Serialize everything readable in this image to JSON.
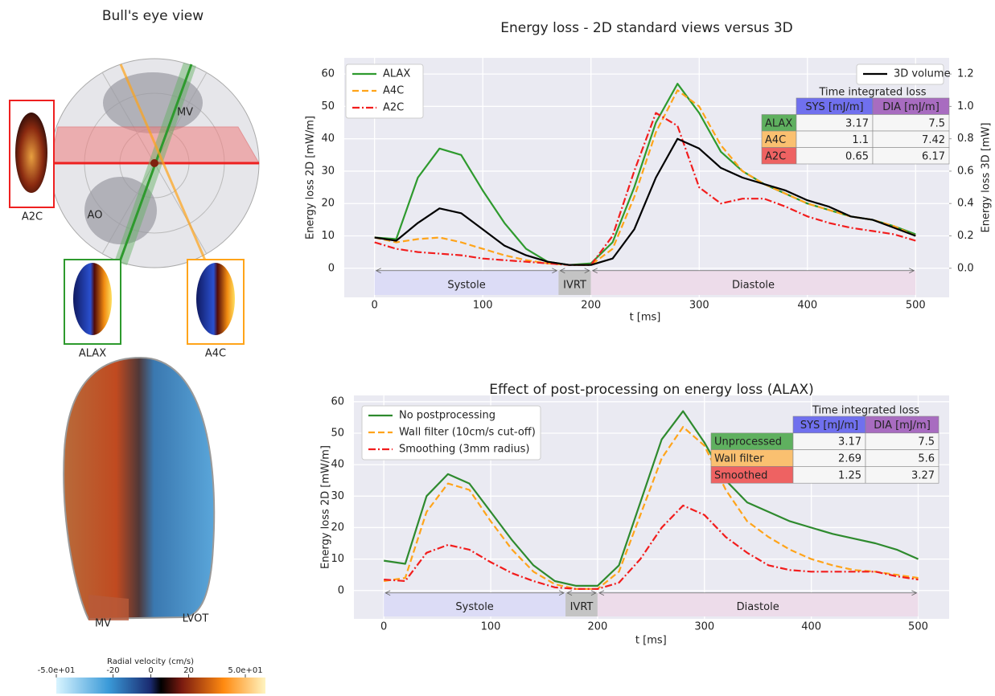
{
  "bullseye": {
    "title": "Bull's eye view",
    "regions": [
      "MV",
      "AO"
    ],
    "views": [
      "A2C",
      "ALAX",
      "A4C"
    ]
  },
  "volume_render": {
    "labels": [
      "MV",
      "LVOT"
    ]
  },
  "colorbar": {
    "title": "Radial velocity (cm/s)",
    "range": [
      -50,
      50
    ],
    "ticks": [
      {
        "value": -50,
        "label": "-5.0e+01"
      },
      -20,
      0,
      20,
      {
        "value": 50,
        "label": "5.0e+01"
      }
    ]
  },
  "chart_data": [
    {
      "type": "line",
      "title": "Energy loss - 2D standard views versus 3D",
      "x_label": "t [ms]",
      "y_label": "Energy loss 2D [mW/m]",
      "y2_label": "Energy loss 3D [mW]",
      "xlim": [
        -28,
        531
      ],
      "ylim": [
        -9,
        65
      ],
      "y2lim": [
        -0.18,
        1.3
      ],
      "xticks": [
        0,
        100,
        200,
        300,
        400,
        500
      ],
      "yticks": [
        0,
        10,
        20,
        30,
        40,
        50,
        60
      ],
      "y2ticks": [
        {
          "value": 0,
          "label": "0.0"
        },
        0.2,
        0.4,
        0.6,
        0.8,
        {
          "value": 1,
          "label": "1.0"
        },
        1.2
      ],
      "grid": true,
      "phases": [
        {
          "label": "Systole",
          "start": 0,
          "end": 170,
          "color": "#dcdcf6"
        },
        {
          "label": "IVRT",
          "start": 170,
          "end": 200,
          "color": "#c4c4c4"
        },
        {
          "label": "Diastole",
          "start": 200,
          "end": 500,
          "color": "#eddcea"
        }
      ],
      "x": [
        0,
        20,
        40,
        60,
        80,
        100,
        120,
        140,
        160,
        180,
        200,
        220,
        240,
        260,
        280,
        300,
        320,
        340,
        360,
        380,
        400,
        420,
        440,
        460,
        480,
        500
      ],
      "series": [
        {
          "name": "ALAX",
          "color": "#2e9a2e",
          "style": "solid",
          "values": [
            9.5,
            9,
            28,
            37,
            35,
            24,
            14,
            6,
            2,
            1,
            1.5,
            8,
            25,
            45,
            57,
            48,
            36,
            30,
            26,
            23,
            20,
            18,
            16,
            15,
            13,
            10.5
          ]
        },
        {
          "name": "A4C",
          "color": "#ffa41a",
          "style": "dashed",
          "values": [
            9.5,
            8,
            9,
            9.5,
            8,
            6,
            4,
            2.5,
            1.5,
            1,
            1,
            6,
            22,
            42,
            55,
            50,
            38,
            30,
            26,
            23,
            20,
            18,
            16,
            15,
            13,
            10
          ]
        },
        {
          "name": "A2C",
          "color": "#f21d1d",
          "style": "dashdot",
          "values": [
            8,
            6,
            5,
            4.5,
            4,
            3,
            2.5,
            2,
            1.5,
            1,
            1,
            10,
            30,
            48,
            44,
            25,
            20,
            21.5,
            21.5,
            19,
            16,
            14,
            12.5,
            11.5,
            10.5,
            8.5
          ]
        },
        {
          "name": "3D volume",
          "color": "#000000",
          "style": "solid",
          "axis": "y2",
          "values": [
            0.19,
            0.17,
            0.28,
            0.37,
            0.34,
            0.24,
            0.14,
            0.08,
            0.04,
            0.02,
            0.02,
            0.06,
            0.24,
            0.56,
            0.8,
            0.74,
            0.62,
            0.56,
            0.52,
            0.48,
            0.42,
            0.38,
            0.32,
            0.3,
            0.25,
            0.2
          ]
        }
      ],
      "table": {
        "title": "Time integrated loss",
        "columns": [
          "SYS [mJ/m]",
          "DIA [mJ/m]"
        ],
        "column_colors": [
          "#7070ee",
          "#a86cc0"
        ],
        "rows": [
          {
            "label": "ALAX",
            "color": "#5fb05f",
            "cells": [
              3.17,
              7.5
            ]
          },
          {
            "label": "A4C",
            "color": "#fac070",
            "cells": [
              1.1,
              7.42
            ]
          },
          {
            "label": "A2C",
            "color": "#ee6262",
            "cells": [
              0.65,
              6.17
            ]
          }
        ]
      }
    },
    {
      "type": "line",
      "title": "Effect of post-processing on energy loss (ALAX)",
      "x_label": "t [ms]",
      "y_label": "Energy loss 2D [mW/m]",
      "xlim": [
        -28,
        529
      ],
      "ylim": [
        -9,
        62
      ],
      "xticks": [
        0,
        100,
        200,
        300,
        400,
        500
      ],
      "yticks": [
        0,
        10,
        20,
        30,
        40,
        50,
        60
      ],
      "grid": true,
      "phases": [
        {
          "label": "Systole",
          "start": 0,
          "end": 170,
          "color": "#dcdcf6"
        },
        {
          "label": "IVRT",
          "start": 170,
          "end": 200,
          "color": "#c4c4c4"
        },
        {
          "label": "Diastole",
          "start": 200,
          "end": 500,
          "color": "#eddcea"
        }
      ],
      "x": [
        0,
        20,
        40,
        60,
        80,
        100,
        120,
        140,
        160,
        180,
        200,
        220,
        240,
        260,
        280,
        300,
        320,
        340,
        360,
        380,
        400,
        420,
        440,
        460,
        480,
        500
      ],
      "series": [
        {
          "name": "No postprocessing",
          "color": "#2e8a2e",
          "style": "solid",
          "values": [
            9.5,
            8.5,
            30,
            37,
            34,
            25,
            16,
            8,
            3,
            1.5,
            1.5,
            8,
            28,
            48,
            57,
            47,
            35,
            28,
            25,
            22,
            20,
            18,
            16.5,
            15,
            13,
            10
          ]
        },
        {
          "name": "Wall filter (10cm/s cut-off)",
          "color": "#ffa41a",
          "style": "dashed",
          "values": [
            3,
            4,
            25,
            34,
            32,
            22,
            13,
            6,
            2,
            0.5,
            0.5,
            6,
            24,
            42,
            52,
            46,
            32,
            22,
            17,
            13,
            10,
            8,
            6.5,
            6,
            5,
            4
          ]
        },
        {
          "name": "Smoothing (3mm radius)",
          "color": "#f21d1d",
          "style": "dashdot",
          "values": [
            3.5,
            3,
            12,
            14.5,
            13,
            9,
            5.5,
            3,
            1,
            0.5,
            0.5,
            2.5,
            10,
            20,
            27,
            24,
            17,
            12,
            8,
            6.5,
            6,
            6,
            6,
            6,
            4.5,
            3.5
          ]
        }
      ],
      "table": {
        "title": "Time integrated loss",
        "columns": [
          "SYS [mJ/m]",
          "DIA [mJ/m]"
        ],
        "column_colors": [
          "#7070ee",
          "#a86cc0"
        ],
        "rows": [
          {
            "label": "Unprocessed",
            "color": "#5fb05f",
            "cells": [
              3.17,
              7.5
            ]
          },
          {
            "label": "Wall filter",
            "color": "#fac070",
            "cells": [
              2.69,
              5.6
            ]
          },
          {
            "label": "Smoothed",
            "color": "#ee6262",
            "cells": [
              1.25,
              3.27
            ]
          }
        ]
      }
    }
  ]
}
